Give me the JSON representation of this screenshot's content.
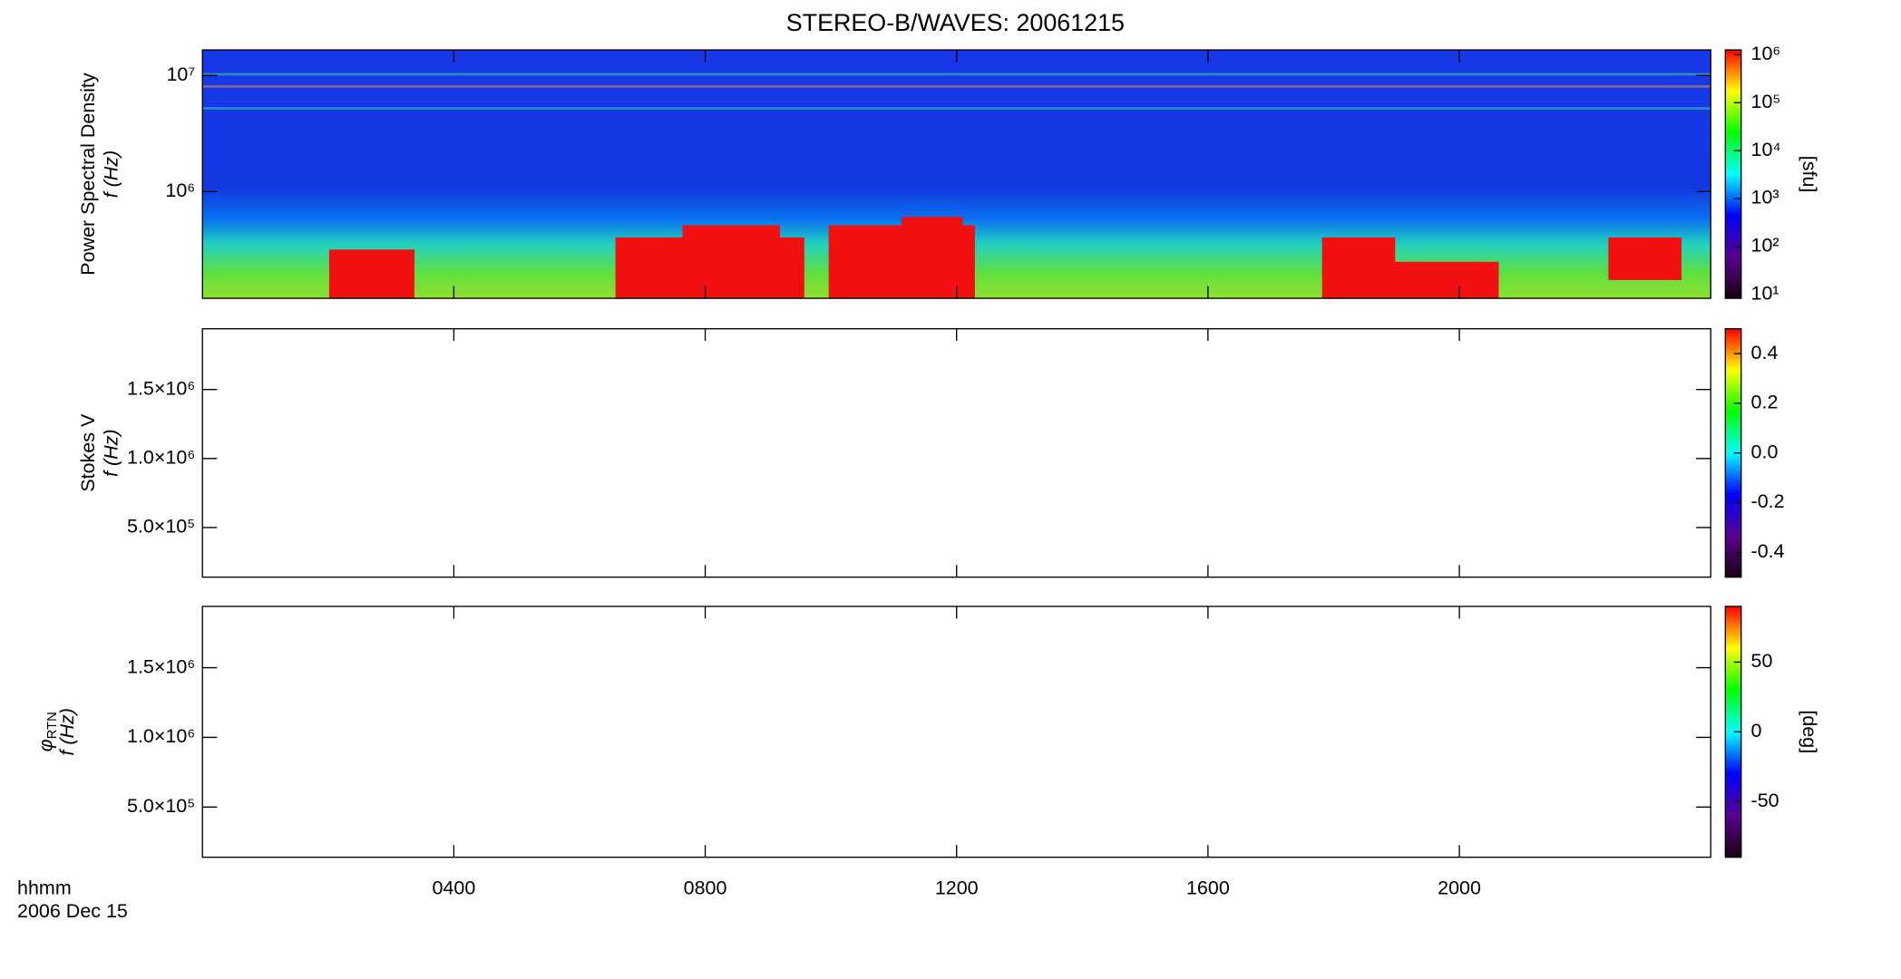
{
  "title": "STEREO-B/WAVES: 20061215",
  "x_axis": {
    "xlim": [
      0,
      24
    ],
    "xticks": [
      {
        "value": 4,
        "label": "0400"
      },
      {
        "value": 8,
        "label": "0800"
      },
      {
        "value": 12,
        "label": "1200"
      },
      {
        "value": 16,
        "label": "1600"
      },
      {
        "value": 20,
        "label": "2000"
      }
    ],
    "label": "hhmm",
    "date": "2006 Dec 15"
  },
  "chart_data": [
    {
      "type": "spectrogram",
      "ylabel": [
        "Power Spectral Density",
        "f (Hz)"
      ],
      "ylog": true,
      "ylim": [
        120000,
        16600000
      ],
      "yticks": [
        {
          "value": 1000000,
          "label": "10⁶"
        },
        {
          "value": 10000000,
          "label": "10⁷"
        }
      ],
      "colorbar": {
        "log": true,
        "lim": [
          8.3,
          1260000
        ],
        "label": "[sfu]",
        "colors": [
          "#1a0012",
          "#5a0090",
          "#0000ff",
          "#00ffff",
          "#00ff00",
          "#ffff00",
          "#ff0000"
        ],
        "ticks": [
          {
            "value": 10,
            "label": "10¹"
          },
          {
            "value": 100,
            "label": "10²"
          },
          {
            "value": 1000,
            "label": "10³"
          },
          {
            "value": 10000,
            "label": "10⁴"
          },
          {
            "value": 100000,
            "label": "10⁵"
          },
          {
            "value": 1000000,
            "label": "10⁶"
          }
        ]
      }
    },
    {
      "type": "spectrogram",
      "ylabel": [
        "Stokes V",
        "f (Hz)"
      ],
      "ylog": false,
      "ylim": [
        140000,
        1940000
      ],
      "yticks": [
        {
          "value": 500000,
          "label": "5.0×10⁵"
        },
        {
          "value": 1000000,
          "label": "1.0×10⁶"
        },
        {
          "value": 1500000,
          "label": "1.5×10⁶"
        }
      ],
      "colorbar": {
        "log": false,
        "lim": [
          -0.5,
          0.5
        ],
        "colors": [
          "#1a0012",
          "#5a0090",
          "#0000ff",
          "#00ffff",
          "#00ff00",
          "#ffff00",
          "#ff0000"
        ],
        "ticks": [
          -0.4,
          -0.2,
          {
            "value": 0,
            "label": "0.0"
          },
          0.2,
          0.4
        ]
      }
    },
    {
      "type": "spectrogram",
      "ylabel": [
        "φ",
        "RTN",
        "f (Hz)"
      ],
      "ylog": false,
      "ylim": [
        140000,
        1940000
      ],
      "yticks": [
        {
          "value": 500000,
          "label": "5.0×10⁵"
        },
        {
          "value": 1000000,
          "label": "1.0×10⁶"
        },
        {
          "value": 1500000,
          "label": "1.5×10⁶"
        }
      ],
      "colorbar": {
        "log": false,
        "lim": [
          -90,
          90
        ],
        "label": "[deg]",
        "colors": [
          "#1a0012",
          "#5a0090",
          "#0000ff",
          "#00ffff",
          "#00ff00",
          "#ffff00",
          "#ff0000"
        ],
        "ticks": [
          -50,
          0,
          50
        ]
      }
    }
  ]
}
